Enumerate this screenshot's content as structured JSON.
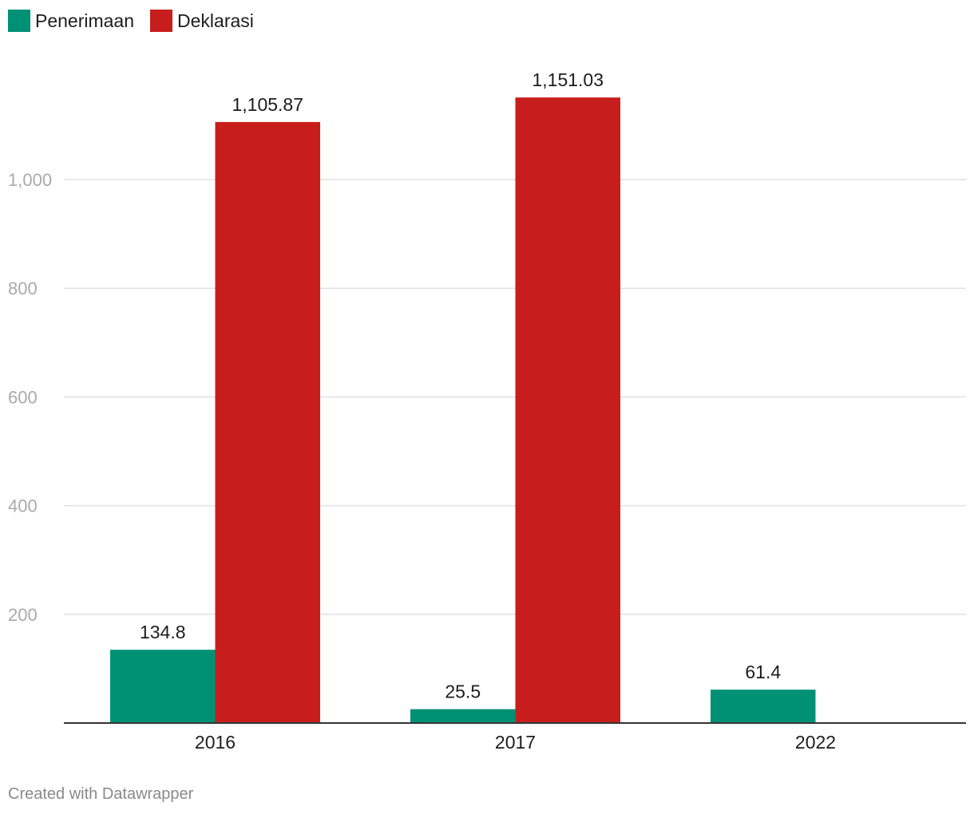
{
  "chart_data": {
    "type": "bar",
    "categories": [
      "2016",
      "2017",
      "2022"
    ],
    "series": [
      {
        "name": "Penerimaan",
        "color": "#009175",
        "values": [
          134.8,
          25.5,
          61.4
        ],
        "labels": [
          "134.8",
          "25.5",
          "61.4"
        ]
      },
      {
        "name": "Deklarasi",
        "color": "#c71e1d",
        "values": [
          1105.87,
          1151.03,
          null
        ],
        "labels": [
          "1,105.87",
          "1,151.03",
          ""
        ]
      }
    ],
    "yticks": [
      {
        "value": 200,
        "label": "200"
      },
      {
        "value": 400,
        "label": "400"
      },
      {
        "value": 600,
        "label": "600"
      },
      {
        "value": 800,
        "label": "800"
      },
      {
        "value": 1000,
        "label": "1,000"
      }
    ],
    "ylim": [
      0,
      1200
    ],
    "title": "",
    "xlabel": "",
    "ylabel": "",
    "legend_position": "top-left",
    "grid": true
  },
  "footer": {
    "credit": "Created with Datawrapper"
  }
}
